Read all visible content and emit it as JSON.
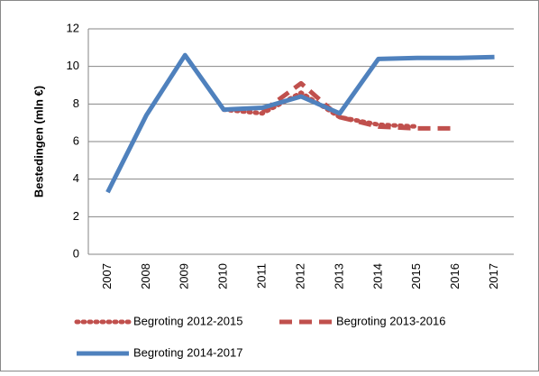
{
  "chart_data": {
    "type": "line",
    "y_label": "Bestedingen (mln €)",
    "categories": [
      "2007",
      "2008",
      "2009",
      "2010",
      "2011",
      "2012",
      "2013",
      "2014",
      "2015",
      "2016",
      "2017"
    ],
    "series": [
      {
        "name": "Begroting 2012-2015",
        "color": "#c0504d",
        "style": "dotted",
        "values": [
          null,
          null,
          null,
          7.7,
          7.5,
          8.6,
          7.3,
          6.9,
          6.8,
          null,
          null
        ]
      },
      {
        "name": "Begroting 2013-2016",
        "color": "#c0504d",
        "style": "dashed",
        "values": [
          null,
          null,
          null,
          null,
          7.6,
          9.1,
          7.3,
          6.8,
          6.7,
          6.7,
          null
        ]
      },
      {
        "name": "Begroting 2014-2017",
        "color": "#4f81bd",
        "style": "solid",
        "values": [
          3.3,
          7.4,
          10.6,
          7.7,
          7.8,
          8.4,
          7.5,
          10.4,
          10.45,
          10.45,
          10.5
        ]
      }
    ],
    "ylim": [
      0,
      12
    ],
    "yticks": [
      0,
      2,
      4,
      6,
      8,
      10,
      12
    ],
    "grid": true
  }
}
